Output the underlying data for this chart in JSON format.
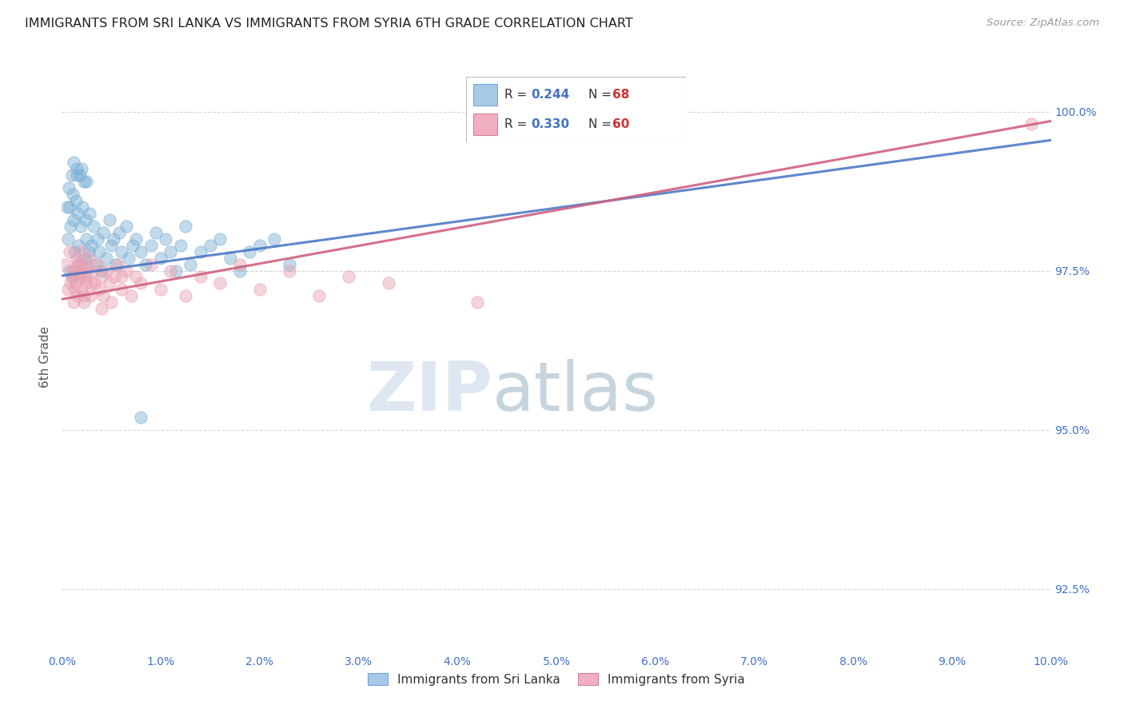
{
  "title": "IMMIGRANTS FROM SRI LANKA VS IMMIGRANTS FROM SYRIA 6TH GRADE CORRELATION CHART",
  "source": "Source: ZipAtlas.com",
  "ylabel": "6th Grade",
  "series1_label": "Immigrants from Sri Lanka",
  "series2_label": "Immigrants from Syria",
  "series1_color": "#7bafd4",
  "series2_color": "#e8a0b0",
  "series1_line_color": "#4472c4",
  "series2_line_color": "#d06080",
  "series1_R": 0.244,
  "series1_N": 68,
  "series2_R": 0.33,
  "series2_N": 60,
  "xmin": 0.0,
  "xmax": 10.0,
  "ymin": 91.5,
  "ymax": 100.8,
  "yticks": [
    92.5,
    95.0,
    97.5,
    100.0
  ],
  "ytick_labels": [
    "92.5%",
    "95.0%",
    "97.5%",
    "100.0%"
  ],
  "watermark_zip": "ZIP",
  "watermark_atlas": "atlas",
  "sri_lanka_x": [
    0.05,
    0.07,
    0.08,
    0.09,
    0.1,
    0.11,
    0.12,
    0.13,
    0.14,
    0.15,
    0.16,
    0.17,
    0.18,
    0.19,
    0.2,
    0.21,
    0.22,
    0.23,
    0.24,
    0.25,
    0.27,
    0.28,
    0.3,
    0.32,
    0.34,
    0.36,
    0.38,
    0.4,
    0.42,
    0.45,
    0.48,
    0.5,
    0.52,
    0.55,
    0.58,
    0.6,
    0.65,
    0.68,
    0.72,
    0.75,
    0.8,
    0.85,
    0.9,
    0.95,
    1.0,
    1.05,
    1.1,
    1.15,
    1.2,
    1.25,
    1.3,
    1.4,
    1.5,
    1.6,
    1.7,
    1.8,
    1.9,
    2.0,
    2.15,
    2.3,
    0.06,
    0.08,
    0.1,
    0.12,
    0.15,
    0.2,
    0.25,
    0.8
  ],
  "sri_lanka_y": [
    98.5,
    98.8,
    97.5,
    98.2,
    99.0,
    98.7,
    98.3,
    97.8,
    98.6,
    99.1,
    98.4,
    97.9,
    99.0,
    98.2,
    97.6,
    98.5,
    98.9,
    97.7,
    98.3,
    98.0,
    97.8,
    98.4,
    97.9,
    98.2,
    97.6,
    98.0,
    97.8,
    97.5,
    98.1,
    97.7,
    98.3,
    97.9,
    98.0,
    97.6,
    98.1,
    97.8,
    98.2,
    97.7,
    97.9,
    98.0,
    97.8,
    97.6,
    97.9,
    98.1,
    97.7,
    98.0,
    97.8,
    97.5,
    97.9,
    98.2,
    97.6,
    97.8,
    97.9,
    98.0,
    97.7,
    97.5,
    97.8,
    97.9,
    98.0,
    97.6,
    98.0,
    98.5,
    97.4,
    99.2,
    99.0,
    99.1,
    98.9,
    95.2
  ],
  "syria_x": [
    0.04,
    0.06,
    0.08,
    0.1,
    0.12,
    0.13,
    0.14,
    0.15,
    0.16,
    0.17,
    0.18,
    0.19,
    0.2,
    0.21,
    0.22,
    0.23,
    0.24,
    0.25,
    0.27,
    0.29,
    0.31,
    0.33,
    0.35,
    0.38,
    0.4,
    0.42,
    0.45,
    0.48,
    0.5,
    0.53,
    0.56,
    0.6,
    0.65,
    0.7,
    0.75,
    0.8,
    0.9,
    1.0,
    1.1,
    1.25,
    1.4,
    1.6,
    1.8,
    2.0,
    2.3,
    2.6,
    2.9,
    3.3,
    4.2,
    0.09,
    0.11,
    0.13,
    0.16,
    0.18,
    0.22,
    0.26,
    0.3,
    0.4,
    0.6,
    9.8
  ],
  "syria_y": [
    97.6,
    97.2,
    97.8,
    97.4,
    97.0,
    97.5,
    97.3,
    97.7,
    97.1,
    97.6,
    97.4,
    97.8,
    97.2,
    97.5,
    97.0,
    97.4,
    97.6,
    97.3,
    97.7,
    97.1,
    97.5,
    97.3,
    97.6,
    97.2,
    97.4,
    97.1,
    97.5,
    97.3,
    97.0,
    97.4,
    97.6,
    97.2,
    97.5,
    97.1,
    97.4,
    97.3,
    97.6,
    97.2,
    97.5,
    97.1,
    97.4,
    97.3,
    97.6,
    97.2,
    97.5,
    97.1,
    97.4,
    97.3,
    97.0,
    97.3,
    97.5,
    97.2,
    97.6,
    97.4,
    97.1,
    97.5,
    97.3,
    96.9,
    97.4,
    99.8
  ],
  "sri_lanka_trend_x0": 0.0,
  "sri_lanka_trend_y0": 97.42,
  "sri_lanka_trend_x1": 10.0,
  "sri_lanka_trend_y1": 99.55,
  "syria_trend_x0": 0.0,
  "syria_trend_y0": 97.05,
  "syria_trend_x1": 10.0,
  "syria_trend_y1": 99.85
}
